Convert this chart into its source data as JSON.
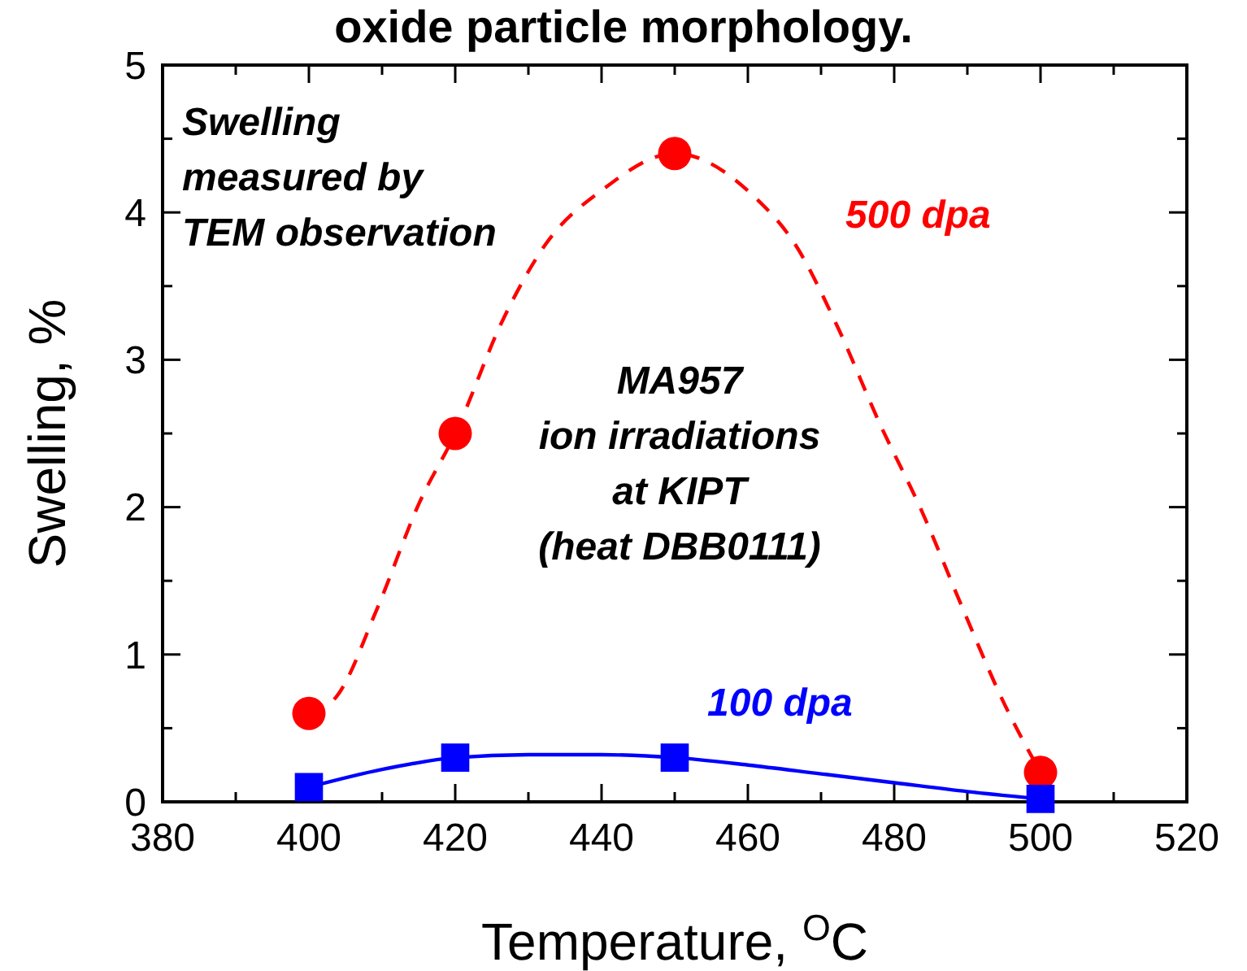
{
  "chart_data": {
    "type": "scatter",
    "title": "oxide particle morphology.",
    "xlabel": "Temperature, $^{O}$C",
    "ylabel": "Swelling, %",
    "xlim": [
      380,
      520
    ],
    "ylim": [
      0,
      5
    ],
    "xticks": [
      380,
      {
        "value": 390,
        "label": null
      },
      400,
      {
        "value": 410,
        "label": null
      },
      420,
      {
        "value": 430,
        "label": null
      },
      440,
      {
        "value": 450,
        "label": null
      },
      460,
      {
        "value": 470,
        "label": null
      },
      480,
      {
        "value": 490,
        "label": null
      },
      500,
      {
        "value": 510,
        "label": null
      },
      520
    ],
    "yticks": [
      0,
      {
        "value": 0.5,
        "label": null
      },
      1,
      {
        "value": 1.5,
        "label": null
      },
      2,
      {
        "value": 2.5,
        "label": null
      },
      3,
      {
        "value": 3.5,
        "label": null
      },
      4,
      {
        "value": 4.5,
        "label": null
      },
      5
    ],
    "grid": false,
    "legend": false,
    "annotations": [
      "Swelling\nmeasured by\nTEM observation",
      "MA957\nion irradiations\nat KIPT\n(heat DBB0111)"
    ],
    "series": [
      {
        "type": "line",
        "color": "#ff0000",
        "line_style": "dashed",
        "marker": "none",
        "x": [
          400,
          403.7,
          409.4,
          415.1,
          420,
          426.6,
          432.3,
          440.3,
          450,
          460.8,
          466.5,
          472.2,
          478,
          483.8,
          489.3,
          495.1,
          500
        ],
        "values": [
          0.6,
          0.71,
          1.32,
          2.03,
          2.5,
          3.28,
          3.78,
          4.16,
          4.4,
          4.11,
          3.78,
          3.23,
          2.57,
          1.97,
          1.32,
          0.66,
          0.2
        ]
      },
      {
        "type": "line",
        "color": "#0000ff",
        "line_style": "solid",
        "marker": "none",
        "x": [
          400,
          410,
          420,
          430,
          440,
          450,
          460,
          470,
          480,
          490,
          500
        ],
        "values": [
          0.1,
          0.22,
          0.3,
          0.32,
          0.32,
          0.3,
          0.25,
          0.19,
          0.13,
          0.07,
          0.02
        ]
      },
      {
        "type": "scatter",
        "name": "500 dpa",
        "color": "#ff0000",
        "marker": "circle",
        "x": [
          400,
          420,
          450,
          500
        ],
        "values": [
          0.6,
          2.5,
          4.4,
          0.2
        ]
      },
      {
        "type": "scatter",
        "name": "100 dpa",
        "color": "#0000ff",
        "marker": "square",
        "x": [
          400,
          420,
          450,
          500
        ],
        "values": [
          0.1,
          0.3,
          0.3,
          0.02
        ]
      }
    ]
  }
}
